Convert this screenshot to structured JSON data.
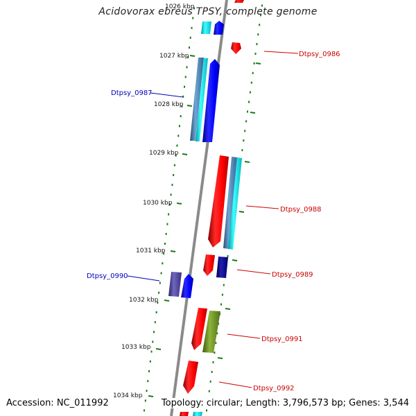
{
  "title": "Acidovorax ebreus TPSY, complete genome",
  "footer": {
    "accession": "Accession: NC_011992",
    "topology": "Topology: circular; Length: 3,796,573 bp; Genes: 3,544"
  },
  "colors": {
    "forward_gene": "#ff0000",
    "reverse_gene": "#0000ff",
    "cyan_feature": "#00e5ee",
    "steel_feature": "#4682b4",
    "olive_feature": "#6b8e23",
    "navy_feature": "#00008b",
    "slate_feature": "#483d8b",
    "tick": "#1a7a1a",
    "backbone": "#888888",
    "forward_label": "#cc0000",
    "reverse_label": "#0000bb"
  },
  "kbp_labels": [
    "1026 kbp",
    "1027 kbp",
    "1028 kbp",
    "1029 kbp",
    "1030 kbp",
    "1031 kbp",
    "1032 kbp",
    "1033 kbp",
    "1034 kbp"
  ],
  "gene_labels": [
    {
      "text": "Dtpsy_0986",
      "strand": "forward"
    },
    {
      "text": "Dtpsy_0987",
      "strand": "reverse"
    },
    {
      "text": "Dtpsy_0988",
      "strand": "forward"
    },
    {
      "text": "Dtpsy_0989",
      "strand": "forward"
    },
    {
      "text": "Dtpsy_0990",
      "strand": "reverse"
    },
    {
      "text": "Dtpsy_0991",
      "strand": "forward"
    },
    {
      "text": "Dtpsy_0992",
      "strand": "forward"
    }
  ]
}
